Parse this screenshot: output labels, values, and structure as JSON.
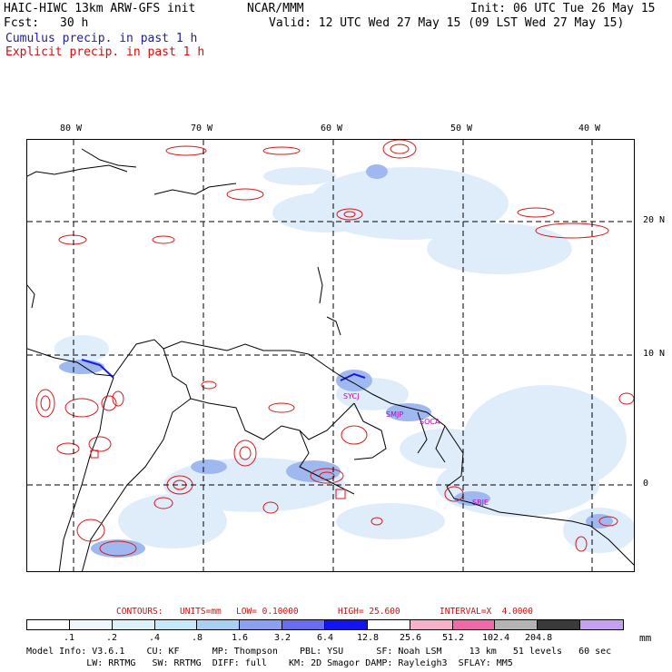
{
  "header": {
    "model": "HAIC-HIWC 13km ARW-GFS init",
    "org": "NCAR/MMM",
    "init": "Init: 06 UTC Tue 26 May 15",
    "fcst_label": "Fcst:",
    "fcst_value": "30 h",
    "valid": "Valid: 12 UTC Wed 27 May 15 (09 LST Wed 27 May 15)",
    "cumulus": "Cumulus precip. in past 1 h",
    "explicit": "Explicit precip. in past 1 h"
  },
  "map": {
    "lon_labels": [
      "80 W",
      "70 W",
      "60 W",
      "50 W",
      "40 W"
    ],
    "lat_labels": [
      "20 N",
      "10 N",
      "0"
    ],
    "stations": [
      "SMJP",
      "SOCA",
      "SBJE",
      "SYCJ"
    ]
  },
  "contours": {
    "label": "CONTOURS:",
    "units": "UNITS=mm",
    "low": "LOW= 0.10000",
    "high": "HIGH= 25.600",
    "interval": "INTERVAL=X  4.0000"
  },
  "colorbar": {
    "colors": [
      "#ffffff",
      "#eef8fd",
      "#ddf1fb",
      "#c6e8f8",
      "#a9cff2",
      "#8d9ff0",
      "#6a6df0",
      "#1414f0",
      "#ffffff",
      "#f7b2c8",
      "#f06aa8",
      "#b4b4b4",
      "#3a3a3a",
      "#c59ff0"
    ],
    "labels": [
      ".1",
      ".2",
      ".4",
      ".8",
      "1.6",
      "3.2",
      "6.4",
      "12.8",
      "25.6",
      "51.2",
      "102.4",
      "204.8"
    ],
    "unit": "mm"
  },
  "footer": {
    "line1": "Model Info: V3.6.1    CU: KF      MP: Thompson    PBL: YSU      SF: Noah LSM     13 km   51 levels   60 sec",
    "line2": "           LW: RRTMG   SW: RRTMG  DIFF: full    KM: 2D Smagor DAMP: Rayleigh3  SFLAY: MM5"
  }
}
